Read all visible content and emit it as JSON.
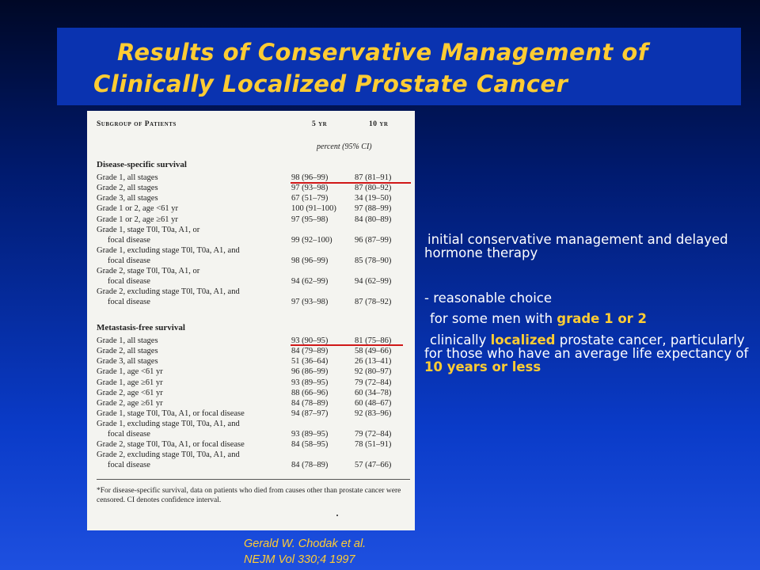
{
  "title": {
    "line1": "Results of Conservative Management of",
    "line2": "Clinically Localized Prostate Cancer"
  },
  "table": {
    "headers": {
      "subgroup": "Subgroup of Patients",
      "yr5": "5 yr",
      "yr10": "10 yr"
    },
    "subheader": "percent (95% CI)",
    "sections": [
      {
        "title": "Disease-specific survival",
        "rows": [
          {
            "label": "Grade 1, all stages",
            "v5": "98 (96–99)",
            "v10": "87 (81–91)"
          },
          {
            "label": "Grade 2, all stages",
            "v5": "97 (93–98)",
            "v10": "87 (80–92)"
          },
          {
            "label": "Grade 3, all stages",
            "v5": "67 (51–79)",
            "v10": "34 (19–50)"
          },
          {
            "label": "Grade 1 or 2, age <61 yr",
            "v5": "100 (91–100)",
            "v10": "97 (88–99)"
          },
          {
            "label": "Grade 1 or 2, age ≥61 yr",
            "v5": "97 (95–98)",
            "v10": "84 (80–89)"
          },
          {
            "label": "Grade 1, stage T0l, T0a, A1, or",
            "cont": "focal disease",
            "v5": "99 (92–100)",
            "v10": "96 (87–99)"
          },
          {
            "label": "Grade 1, excluding stage T0l, T0a, A1, and",
            "cont": "focal disease",
            "v5": "98 (96–99)",
            "v10": "85 (78–90)"
          },
          {
            "label": "Grade 2, stage T0l, T0a, A1, or",
            "cont": "focal disease",
            "v5": "94 (62–99)",
            "v10": "94 (62–99)"
          },
          {
            "label": "Grade 2, excluding stage T0l, T0a, A1, and",
            "cont": "focal disease",
            "v5": "97 (93–98)",
            "v10": "87 (78–92)"
          }
        ]
      },
      {
        "title": "Metastasis-free survival",
        "rows": [
          {
            "label": "Grade 1, all stages",
            "v5": "93 (90–95)",
            "v10": "81 (75–86)"
          },
          {
            "label": "Grade 2, all stages",
            "v5": "84 (79–89)",
            "v10": "58 (49–66)"
          },
          {
            "label": "Grade 3, all stages",
            "v5": "51 (36–64)",
            "v10": "26 (13–41)"
          },
          {
            "label": "Grade 1, age <61 yr",
            "v5": "96 (86–99)",
            "v10": "92 (80–97)"
          },
          {
            "label": "Grade 1, age ≥61 yr",
            "v5": "93 (89–95)",
            "v10": "79 (72–84)"
          },
          {
            "label": "Grade 2, age <61 yr",
            "v5": "88 (66–96)",
            "v10": "60 (34–78)"
          },
          {
            "label": "Grade 2, age ≥61 yr",
            "v5": "84 (78–89)",
            "v10": "60 (48–67)"
          },
          {
            "label": "Grade 1, stage T0l, T0a, A1, or focal disease",
            "v5": "94 (87–97)",
            "v10": "92 (83–96)"
          },
          {
            "label": "Grade 1, excluding stage T0l, T0a, A1, and",
            "cont": "focal disease",
            "v5": "93 (89–95)",
            "v10": "79 (72–84)"
          },
          {
            "label": "Grade 2, stage T0l, T0a, A1, or focal disease",
            "v5": "84 (58–95)",
            "v10": "78 (51–91)"
          },
          {
            "label": "Grade 2, excluding stage T0l, T0a, A1, and",
            "cont": "focal disease",
            "v5": "84 (78–89)",
            "v10": "57 (47–66)"
          }
        ]
      }
    ],
    "footnote": "*For disease-specific survival, data on patients who died from causes other than prostate cancer were censored. CI denotes confidence interval.",
    "highlight_color": "#d01818"
  },
  "citation": {
    "line1": "Gerald W. Chodak et al.",
    "line2": "NEJM Vol 330;4 1997"
  },
  "bullets": {
    "b1": "initial conservative management and delayed hormone therapy",
    "b2": "-  reasonable choice",
    "b3_pre": "for some men with ",
    "b3_hl": "grade 1 or 2",
    "b4_pre": "clinically ",
    "b4_hl1": "localized",
    "b4_mid": " prostate cancer, particularly for those who have an average life expectancy of ",
    "b4_hl2": "10 years or less"
  },
  "colors": {
    "title": "#ffcc33",
    "accent": "#ffcc33",
    "title_bg": "#0a33b0"
  }
}
